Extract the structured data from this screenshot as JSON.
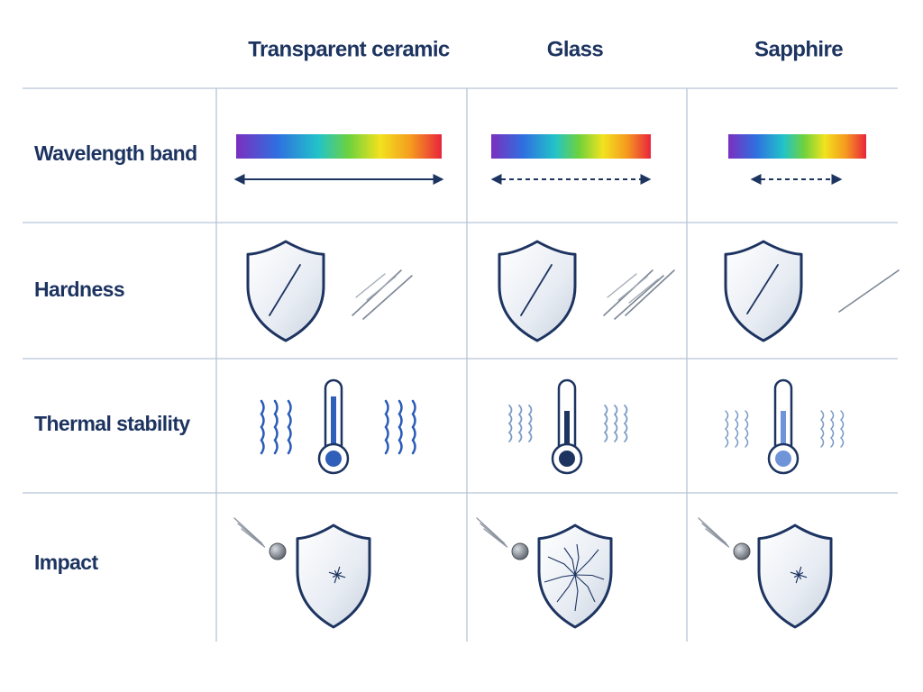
{
  "header": {
    "columns": [
      "Transparent ceramic",
      "Glass",
      "Sapphire"
    ]
  },
  "rows": [
    "Wavelength band",
    "Hardness",
    "Thermal stability",
    "Impact"
  ]
}
